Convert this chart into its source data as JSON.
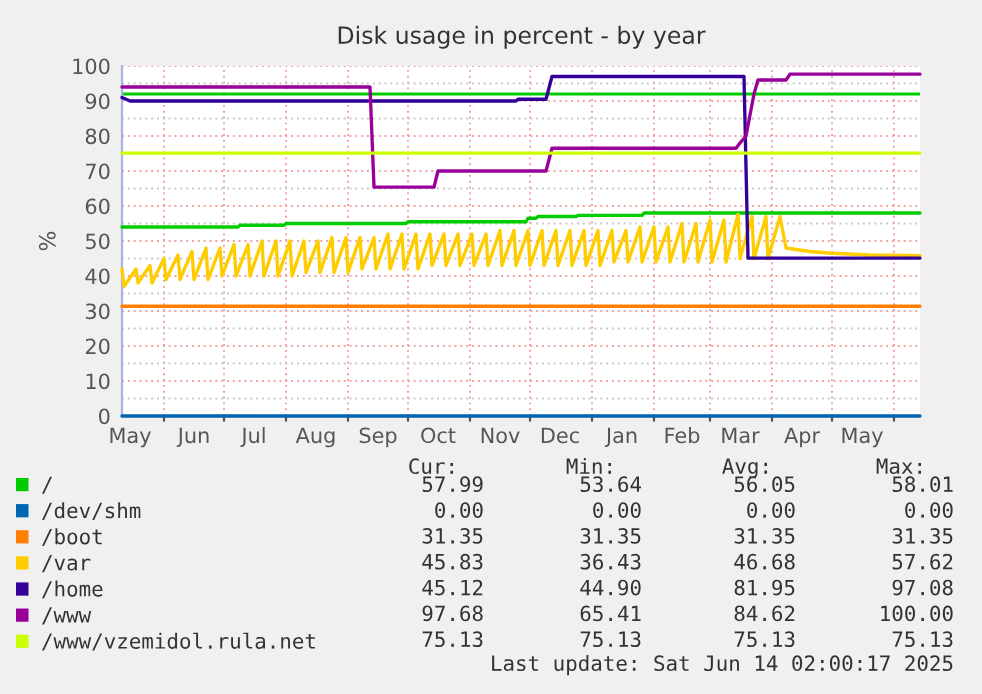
{
  "chart_data": {
    "type": "line",
    "title": "Disk usage in percent - by year",
    "ylabel": "%",
    "xlim": [
      "2024-05-11",
      "2025-06-14"
    ],
    "xticks": [
      {
        "value": "2024-06-01",
        "label": null
      },
      {
        "value": "2024-07-01",
        "label": null
      },
      {
        "value": "2024-08-01",
        "label": null
      },
      {
        "value": "2024-09-01",
        "label": null
      },
      {
        "value": "2024-10-01",
        "label": null
      },
      {
        "value": "2024-11-01",
        "label": null
      },
      {
        "value": "2024-12-01",
        "label": null
      },
      {
        "value": "2025-01-01",
        "label": null
      },
      {
        "value": "2025-02-01",
        "label": null
      },
      {
        "value": "2025-03-01",
        "label": null
      },
      {
        "value": "2025-04-01",
        "label": null
      },
      {
        "value": "2025-05-01",
        "label": null
      },
      {
        "value": "2025-06-01",
        "label": null
      },
      {
        "value": "2024-05-15",
        "label": "May"
      },
      {
        "value": "2024-06-16",
        "label": "Jun"
      },
      {
        "value": "2024-07-16",
        "label": "Jul"
      },
      {
        "value": "2024-08-16",
        "label": "Aug"
      },
      {
        "value": "2024-09-16",
        "label": "Sep"
      },
      {
        "value": "2024-10-16",
        "label": "Oct"
      },
      {
        "value": "2024-11-16",
        "label": "Nov"
      },
      {
        "value": "2024-12-16",
        "label": "Dec"
      },
      {
        "value": "2025-01-16",
        "label": "Jan"
      },
      {
        "value": "2025-02-15",
        "label": "Feb"
      },
      {
        "value": "2025-03-16",
        "label": "Mar"
      },
      {
        "value": "2025-04-16",
        "label": "Apr"
      },
      {
        "value": "2025-05-16",
        "label": "May"
      }
    ],
    "ylim": [
      0,
      100
    ],
    "yticks": [
      0,
      {
        "value": 5,
        "label": null
      },
      10,
      {
        "value": 15,
        "label": null
      },
      20,
      {
        "value": 25,
        "label": null
      },
      30,
      {
        "value": 35,
        "label": null
      },
      40,
      {
        "value": 45,
        "label": null
      },
      50,
      {
        "value": 55,
        "label": null
      },
      60,
      {
        "value": 65,
        "label": null
      },
      70,
      {
        "value": 75,
        "label": null
      },
      80,
      {
        "value": 85,
        "label": null
      },
      90,
      {
        "value": 95,
        "label": null
      },
      100
    ],
    "grid": true,
    "legend": "bottom",
    "ref_lines": [
      {
        "axis": "y",
        "value": 92,
        "color": "#00cc00"
      }
    ],
    "series": [
      {
        "name": "/",
        "color": "#00cc00",
        "x": [
          "2024-05-11",
          "2024-07-08",
          "2024-07-09",
          "2024-07-31",
          "2024-08-01",
          "2024-09-30",
          "2024-10-01",
          "2024-11-29",
          "2024-11-30",
          "2024-12-04",
          "2024-12-05",
          "2024-12-24",
          "2024-12-25",
          "2025-01-26",
          "2025-01-27",
          "2025-06-14"
        ],
        "values": [
          54,
          54,
          54.5,
          54.5,
          55,
          55,
          55.5,
          55.5,
          56.5,
          56.5,
          57,
          57,
          57.3,
          57.3,
          58,
          58
        ]
      },
      {
        "name": "/dev/shm",
        "color": "#0066b3",
        "x": [
          "2024-05-11",
          "2025-06-14"
        ],
        "values": [
          0,
          0
        ]
      },
      {
        "name": "/boot",
        "color": "#ff8000",
        "x": [
          "2024-05-11",
          "2025-06-14"
        ],
        "values": [
          31.35,
          31.35
        ]
      },
      {
        "name": "/var",
        "color": "#ffcc00",
        "x": [
          "2024-05-11",
          "2024-05-12",
          "2024-05-18",
          "2024-05-19",
          "2024-05-25",
          "2024-05-26",
          "2024-06-01",
          "2024-06-02",
          "2024-06-08",
          "2024-06-09",
          "2024-06-15",
          "2024-06-16",
          "2024-06-22",
          "2024-06-23",
          "2024-06-29",
          "2024-06-30",
          "2024-07-06",
          "2024-07-07",
          "2024-07-13",
          "2024-07-14",
          "2024-07-20",
          "2024-07-21",
          "2024-07-27",
          "2024-07-28",
          "2024-08-03",
          "2024-08-04",
          "2024-08-10",
          "2024-08-11",
          "2024-08-17",
          "2024-08-18",
          "2024-08-24",
          "2024-08-25",
          "2024-08-31",
          "2024-09-01",
          "2024-09-07",
          "2024-09-08",
          "2024-09-14",
          "2024-09-15",
          "2024-09-21",
          "2024-09-22",
          "2024-09-28",
          "2024-09-29",
          "2024-10-05",
          "2024-10-06",
          "2024-10-12",
          "2024-10-13",
          "2024-10-19",
          "2024-10-20",
          "2024-10-26",
          "2024-10-27",
          "2024-11-02",
          "2024-11-03",
          "2024-11-09",
          "2024-11-10",
          "2024-11-16",
          "2024-11-17",
          "2024-11-23",
          "2024-11-24",
          "2024-11-30",
          "2024-12-01",
          "2024-12-07",
          "2024-12-08",
          "2024-12-14",
          "2024-12-15",
          "2024-12-21",
          "2024-12-22",
          "2024-12-28",
          "2024-12-29",
          "2025-01-04",
          "2025-01-05",
          "2025-01-11",
          "2025-01-12",
          "2025-01-18",
          "2025-01-19",
          "2025-01-25",
          "2025-01-26",
          "2025-02-01",
          "2025-02-02",
          "2025-02-08",
          "2025-02-09",
          "2025-02-15",
          "2025-02-16",
          "2025-02-22",
          "2025-02-23",
          "2025-03-01",
          "2025-03-02",
          "2025-03-08",
          "2025-03-09",
          "2025-03-15",
          "2025-03-16",
          "2025-03-22",
          "2025-03-23",
          "2025-03-29",
          "2025-03-30",
          "2025-04-05",
          "2025-04-08",
          "2025-04-20",
          "2025-05-01",
          "2025-05-20",
          "2025-06-14"
        ],
        "values": [
          42,
          37,
          42,
          38,
          43,
          38,
          45,
          39,
          46,
          39,
          47,
          39,
          48,
          39,
          48,
          40,
          49,
          40,
          49,
          40,
          50,
          40,
          50,
          40,
          50,
          40,
          50,
          41,
          50,
          41,
          51,
          41,
          51,
          41,
          51,
          42,
          51,
          42,
          52,
          42,
          52,
          42,
          52,
          42,
          52,
          43,
          52,
          43,
          52,
          43,
          52,
          43,
          52,
          43,
          53,
          43,
          53,
          43,
          53,
          43,
          53,
          43,
          53,
          43,
          53,
          43,
          53,
          43,
          53,
          43,
          53,
          44,
          53,
          44,
          54,
          44,
          54,
          44,
          54,
          44,
          55,
          44,
          55,
          44,
          56,
          44,
          56,
          44,
          57.6,
          45,
          57,
          45,
          57,
          45,
          57,
          48,
          47,
          46.5,
          46,
          45.83
        ]
      },
      {
        "name": "/home",
        "color": "#330099",
        "x": [
          "2024-05-11",
          "2024-05-15",
          "2024-11-24",
          "2024-11-25",
          "2024-12-09",
          "2024-12-12",
          "2025-03-18",
          "2025-03-20",
          "2025-06-14"
        ],
        "values": [
          91,
          90,
          90,
          90.5,
          90.5,
          97,
          97,
          45.12,
          45.12
        ]
      },
      {
        "name": "/www",
        "color": "#990099",
        "x": [
          "2024-05-11",
          "2024-09-12",
          "2024-09-14",
          "2024-10-14",
          "2024-10-16",
          "2024-12-09",
          "2024-12-12",
          "2025-03-14",
          "2025-03-16",
          "2025-03-19",
          "2025-03-23",
          "2025-03-25",
          "2025-04-08",
          "2025-04-10",
          "2025-06-14"
        ],
        "values": [
          94,
          94,
          65.41,
          65.41,
          70,
          70,
          76.5,
          76.5,
          78,
          80,
          92,
          96,
          96,
          97.68,
          97.68
        ]
      },
      {
        "name": "/www/vzemidol.rula.net",
        "color": "#ccff00",
        "x": [
          "2024-05-11",
          "2025-06-14"
        ],
        "values": [
          75.13,
          75.13
        ]
      }
    ],
    "annotations": [
      "Cur:",
      "Min:",
      "Avg:",
      "Max:",
      "57.99",
      "53.64",
      "56.05",
      "58.01",
      "0.00",
      "0.00",
      "0.00",
      "0.00",
      "31.35",
      "31.35",
      "31.35",
      "31.35",
      "45.83",
      "36.43",
      "46.68",
      "57.62",
      "45.12",
      "44.90",
      "81.95",
      "97.08",
      "97.68",
      "65.41",
      "84.62",
      "100.00",
      "75.13",
      "75.13",
      "75.13",
      "75.13",
      "Last update: Sat Jun 14 02:00:17 2025"
    ]
  }
}
